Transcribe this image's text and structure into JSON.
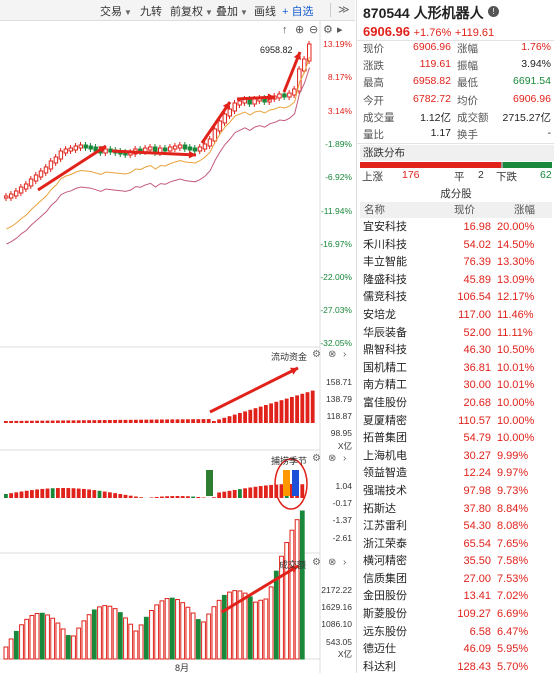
{
  "toolbar": {
    "items": [
      "交易",
      "九转",
      "前复权",
      "叠加",
      "画线"
    ],
    "self_select": "自选",
    "more": "≫"
  },
  "main_chart": {
    "high_annotation": "6958.82",
    "axis_labels": [
      "13.19%",
      "8.17%",
      "3.14%",
      "-1.89%",
      "-6.92%",
      "-11.94%",
      "-16.97%",
      "-22.00%",
      "-27.03%",
      "-32.05%"
    ]
  },
  "fund_flow": {
    "title": "流动资金",
    "axis_labels": [
      "158.71",
      "138.79",
      "118.87",
      "98.95"
    ],
    "unit": "X亿"
  },
  "season": {
    "title": "捕捞季节",
    "axis_labels": [
      "1.04",
      "-0.17",
      "-1.37",
      "-2.61"
    ]
  },
  "volume": {
    "title": "成交额",
    "axis_labels": [
      "2172.22",
      "1629.16",
      "1086.10",
      "543.05"
    ],
    "unit": "X亿",
    "month_label": "8月"
  },
  "stock": {
    "code_name": "870544 人形机器人",
    "price": "6906.96",
    "change_pct": "+1.76%",
    "change": "+119.61",
    "up_color": "#e0221b",
    "down_color": "#19883a"
  },
  "metrics": [
    {
      "k1": "现价",
      "v1": "6906.96",
      "c1": "red",
      "k2": "涨幅",
      "v2": "1.76%",
      "c2": "red"
    },
    {
      "k1": "涨跌",
      "v1": "119.61",
      "c1": "red",
      "k2": "振幅",
      "v2": "3.94%",
      "c2": "dark"
    },
    {
      "k1": "最高",
      "v1": "6958.82",
      "c1": "red",
      "k2": "最低",
      "v2": "6691.54",
      "c2": "green"
    },
    {
      "k1": "今开",
      "v1": "6782.72",
      "c1": "red",
      "k2": "均价",
      "v2": "6906.96",
      "c2": "red"
    },
    {
      "k1": "成交量",
      "v1": "1.12亿",
      "c1": "dark",
      "k2": "成交额",
      "v2": "2715.27亿",
      "c2": "dark"
    },
    {
      "k1": "量比",
      "v1": "1.17",
      "c1": "dark",
      "k2": "换手",
      "v2": "-",
      "c2": "dark"
    }
  ],
  "distribution": {
    "title": "涨跌分布",
    "up_label": "上涨",
    "up": 176,
    "flat_label": "平",
    "flat": 2,
    "down_label": "下跌",
    "down": 62
  },
  "components": {
    "title": "成分股",
    "headers": [
      "名称",
      "现价",
      "涨幅"
    ],
    "rows": [
      {
        "name": "宜安科技",
        "price": "16.98",
        "change": "20.00%"
      },
      {
        "name": "禾川科技",
        "price": "54.02",
        "change": "14.50%"
      },
      {
        "name": "丰立智能",
        "price": "76.39",
        "change": "13.30%"
      },
      {
        "name": "隆盛科技",
        "price": "45.89",
        "change": "13.09%"
      },
      {
        "name": "儒竞科技",
        "price": "106.54",
        "change": "12.17%"
      },
      {
        "name": "安培龙",
        "price": "117.00",
        "change": "11.46%"
      },
      {
        "name": "华辰装备",
        "price": "52.00",
        "change": "11.11%"
      },
      {
        "name": "鼎智科技",
        "price": "46.30",
        "change": "10.50%"
      },
      {
        "name": "国机精工",
        "price": "36.81",
        "change": "10.01%"
      },
      {
        "name": "南方精工",
        "price": "30.00",
        "change": "10.01%"
      },
      {
        "name": "富佳股份",
        "price": "20.68",
        "change": "10.00%"
      },
      {
        "name": "夏厦精密",
        "price": "110.57",
        "change": "10.00%"
      },
      {
        "name": "拓普集团",
        "price": "54.79",
        "change": "10.00%"
      },
      {
        "name": "上海机电",
        "price": "30.27",
        "change": "9.99%"
      },
      {
        "name": "领益智造",
        "price": "12.24",
        "change": "9.97%"
      },
      {
        "name": "强瑞技术",
        "price": "97.98",
        "change": "9.73%"
      },
      {
        "name": "拓斯达",
        "price": "37.80",
        "change": "8.84%"
      },
      {
        "name": "江苏雷利",
        "price": "54.30",
        "change": "8.08%"
      },
      {
        "name": "浙江荣泰",
        "price": "65.54",
        "change": "7.65%"
      },
      {
        "name": "横河精密",
        "price": "35.50",
        "change": "7.58%"
      },
      {
        "name": "信质集团",
        "price": "27.00",
        "change": "7.53%"
      },
      {
        "name": "金田股份",
        "price": "13.41",
        "change": "7.02%"
      },
      {
        "name": "斯菱股份",
        "price": "109.27",
        "change": "6.69%"
      },
      {
        "name": "远东股份",
        "price": "6.58",
        "change": "6.47%"
      },
      {
        "name": "德迈仕",
        "price": "46.09",
        "change": "5.95%"
      },
      {
        "name": "科达利",
        "price": "128.43",
        "change": "5.70%"
      }
    ]
  }
}
